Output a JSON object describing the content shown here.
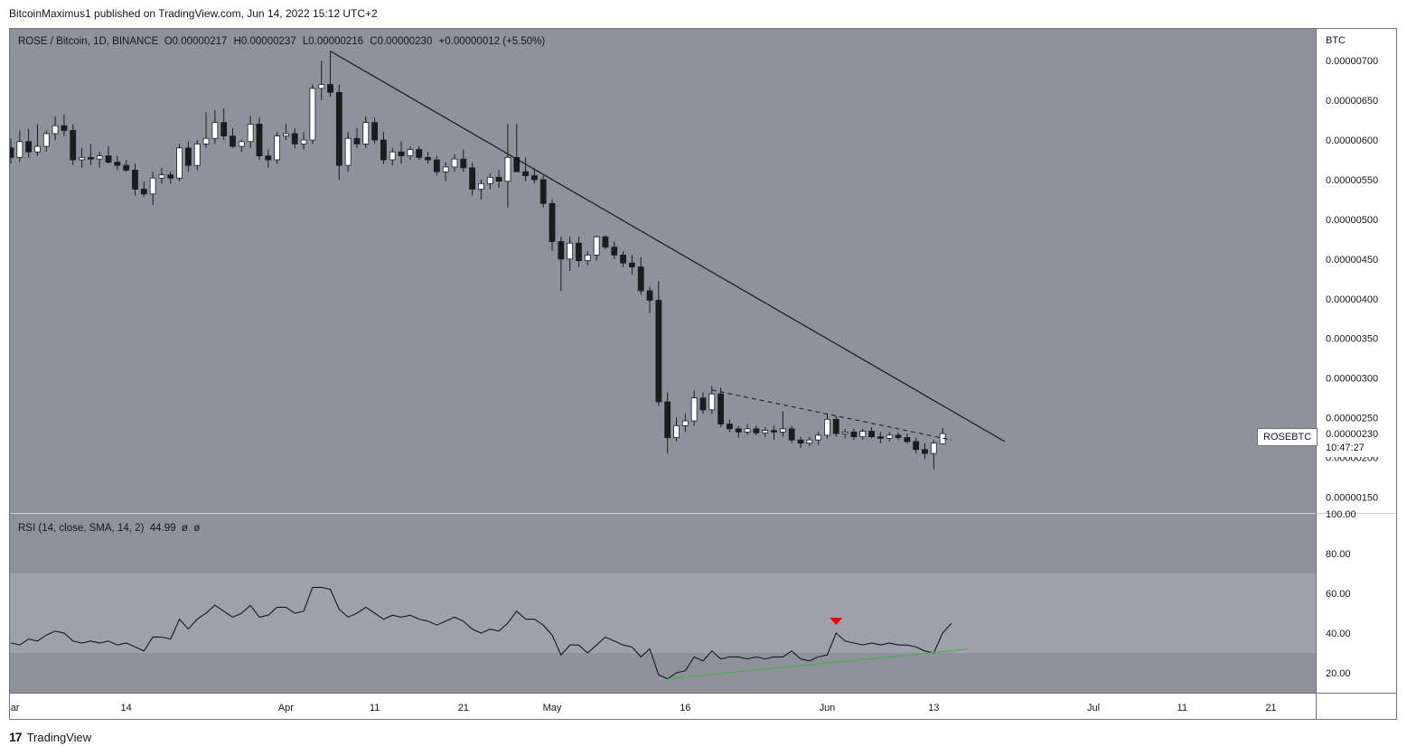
{
  "header": {
    "published": "BitcoinMaximus1 published on TradingView.com, Jun 14, 2022 15:12 UTC+2"
  },
  "legend": {
    "symbol": "ROSE / Bitcoin, 1D, BINANCE",
    "o_label": "O",
    "o": "0.00000217",
    "h_label": "H",
    "h": "0.00000237",
    "l_label": "L",
    "l": "0.00000216",
    "c_label": "C",
    "c": "0.00000230",
    "change": "+0.00000012 (+5.50%)"
  },
  "rsi_legend": {
    "label": "RSI (14, close, SMA, 14, 2)",
    "value": "44.99",
    "na1": "ø",
    "na2": "ø"
  },
  "price_axis": {
    "unit": "BTC",
    "ticks": [
      "0.00000700",
      "0.00000650",
      "0.00000600",
      "0.00000550",
      "0.00000500",
      "0.00000450",
      "0.00000400",
      "0.00000350",
      "0.00000300",
      "0.00000250",
      "0.00000200",
      "0.00000150"
    ]
  },
  "rsi_axis": {
    "ticks": [
      "100.00",
      "80.00",
      "60.00",
      "40.00",
      "20.00"
    ]
  },
  "last_price": {
    "symbol": "ROSEBTC",
    "price": "0.00000230",
    "countdown": "10:47:27"
  },
  "time_axis": {
    "labels": [
      "Mar",
      "14",
      "Apr",
      "11",
      "21",
      "May",
      "16",
      "Jun",
      "13",
      "Jul",
      "11",
      "21"
    ]
  },
  "colors": {
    "background": "#8f929b",
    "rsi_band": "#9ea1aa",
    "up_candle": "#ffffff",
    "down_candle": "#1b1c20",
    "rsi_line": "#131722",
    "rsi_trend": "#4caf50",
    "marker": "#e8000b"
  },
  "footer": {
    "brand": "TradingView",
    "logo": "17"
  },
  "chart_data": [
    {
      "type": "candlestick",
      "title": "ROSE / Bitcoin, 1D, BINANCE",
      "ylabel": "BTC",
      "ylim": [
        1.3e-06,
        7.4e-06
      ],
      "x_start": "2022-03-01",
      "candles": [
        [
          5.9e-06,
          6.02e-06,
          5.7e-06,
          5.78e-06
        ],
        [
          5.78e-06,
          6.12e-06,
          5.72e-06,
          5.98e-06
        ],
        [
          5.98e-06,
          6.14e-06,
          5.78e-06,
          5.85e-06
        ],
        [
          5.85e-06,
          6.2e-06,
          5.8e-06,
          5.92e-06
        ],
        [
          5.92e-06,
          6.12e-06,
          5.85e-06,
          6.08e-06
        ],
        [
          6.08e-06,
          6.3e-06,
          6e-06,
          6.18e-06
        ],
        [
          6.18e-06,
          6.32e-06,
          6.05e-06,
          6.12e-06
        ],
        [
          6.12e-06,
          6.2e-06,
          5.68e-06,
          5.75e-06
        ],
        [
          5.75e-06,
          5.9e-06,
          5.65e-06,
          5.78e-06
        ],
        [
          5.78e-06,
          5.95e-06,
          5.68e-06,
          5.76e-06
        ],
        [
          5.76e-06,
          5.85e-06,
          5.65e-06,
          5.8e-06
        ],
        [
          5.8e-06,
          5.92e-06,
          5.7e-06,
          5.72e-06
        ],
        [
          5.72e-06,
          5.8e-06,
          5.62e-06,
          5.68e-06
        ],
        [
          5.68e-06,
          5.75e-06,
          5.6e-06,
          5.62e-06
        ],
        [
          5.62e-06,
          5.7e-06,
          5.3e-06,
          5.38e-06
        ],
        [
          5.38e-06,
          5.48e-06,
          5.28e-06,
          5.32e-06
        ],
        [
          5.32e-06,
          5.6e-06,
          5.18e-06,
          5.52e-06
        ],
        [
          5.52e-06,
          5.65e-06,
          5.45e-06,
          5.56e-06
        ],
        [
          5.56e-06,
          5.6e-06,
          5.45e-06,
          5.52e-06
        ],
        [
          5.52e-06,
          5.95e-06,
          5.48e-06,
          5.9e-06
        ],
        [
          5.9e-06,
          5.98e-06,
          5.6e-06,
          5.68e-06
        ],
        [
          5.68e-06,
          6e-06,
          5.62e-06,
          5.95e-06
        ],
        [
          5.95e-06,
          6.35e-06,
          5.9e-06,
          6.02e-06
        ],
        [
          6.02e-06,
          6.38e-06,
          5.95e-06,
          6.22e-06
        ],
        [
          6.22e-06,
          6.4e-06,
          6e-06,
          6.05e-06
        ],
        [
          6.05e-06,
          6.15e-06,
          5.9e-06,
          5.92e-06
        ],
        [
          5.92e-06,
          6e-06,
          5.85e-06,
          5.98e-06
        ],
        [
          5.98e-06,
          6.3e-06,
          5.9e-06,
          6.2e-06
        ],
        [
          6.2e-06,
          6.28e-06,
          5.75e-06,
          5.8e-06
        ],
        [
          5.8e-06,
          5.88e-06,
          5.65e-06,
          5.75e-06
        ],
        [
          5.75e-06,
          6.1e-06,
          5.7e-06,
          6.05e-06
        ],
        [
          6.05e-06,
          6.2e-06,
          6e-06,
          6.08e-06
        ],
        [
          6.08e-06,
          6.15e-06,
          5.9e-06,
          5.95e-06
        ],
        [
          5.95e-06,
          6.1e-06,
          5.88e-06,
          6e-06
        ],
        [
          6e-06,
          6.7e-06,
          5.95e-06,
          6.65e-06
        ],
        [
          6.65e-06,
          7e-06,
          6.5e-06,
          6.7e-06
        ],
        [
          6.7e-06,
          7.12e-06,
          6.55e-06,
          6.6e-06
        ],
        [
          6.6e-06,
          6.7e-06,
          5.5e-06,
          5.68e-06
        ],
        [
          5.68e-06,
          6.1e-06,
          5.6e-06,
          6.02e-06
        ],
        [
          6.02e-06,
          6.15e-06,
          5.9e-06,
          5.95e-06
        ],
        [
          5.95e-06,
          6.3e-06,
          5.9e-06,
          6.22e-06
        ],
        [
          6.22e-06,
          6.28e-06,
          5.95e-06,
          6e-06
        ],
        [
          6e-06,
          6.1e-06,
          5.7e-06,
          5.75e-06
        ],
        [
          5.75e-06,
          5.9e-06,
          5.68e-06,
          5.85e-06
        ],
        [
          5.85e-06,
          5.98e-06,
          5.7e-06,
          5.8e-06
        ],
        [
          5.8e-06,
          5.92e-06,
          5.75e-06,
          5.88e-06
        ],
        [
          5.88e-06,
          5.92e-06,
          5.75e-06,
          5.78e-06
        ],
        [
          5.78e-06,
          5.85e-06,
          5.7e-06,
          5.75e-06
        ],
        [
          5.75e-06,
          5.8e-06,
          5.55e-06,
          5.6e-06
        ],
        [
          5.6e-06,
          5.72e-06,
          5.48e-06,
          5.66e-06
        ],
        [
          5.66e-06,
          5.82e-06,
          5.6e-06,
          5.76e-06
        ],
        [
          5.76e-06,
          5.88e-06,
          5.6e-06,
          5.65e-06
        ],
        [
          5.65e-06,
          5.72e-06,
          5.3e-06,
          5.38e-06
        ],
        [
          5.38e-06,
          5.5e-06,
          5.25e-06,
          5.45e-06
        ],
        [
          5.45e-06,
          5.58e-06,
          5.38e-06,
          5.53e-06
        ],
        [
          5.53e-06,
          5.62e-06,
          5.4e-06,
          5.48e-06
        ],
        [
          5.48e-06,
          6.2e-06,
          5.15e-06,
          5.78e-06
        ],
        [
          5.78e-06,
          6.2e-06,
          5.6e-06,
          5.6e-06
        ],
        [
          5.6e-06,
          5.78e-06,
          5.48e-06,
          5.55e-06
        ],
        [
          5.55e-06,
          5.65e-06,
          5.45e-06,
          5.5e-06
        ],
        [
          5.5e-06,
          5.55e-06,
          5.15e-06,
          5.2e-06
        ],
        [
          5.2e-06,
          5.25e-06,
          4.6e-06,
          4.72e-06
        ],
        [
          4.72e-06,
          4.78e-06,
          4.1e-06,
          4.5e-06
        ],
        [
          4.5e-06,
          4.78e-06,
          4.35e-06,
          4.7e-06
        ],
        [
          4.7e-06,
          4.78e-06,
          4.4e-06,
          4.48e-06
        ],
        [
          4.48e-06,
          4.6e-06,
          4.42e-06,
          4.55e-06
        ],
        [
          4.55e-06,
          4.8e-06,
          4.48e-06,
          4.78e-06
        ],
        [
          4.78e-06,
          4.8e-06,
          4.62e-06,
          4.65e-06
        ],
        [
          4.65e-06,
          4.72e-06,
          4.5e-06,
          4.55e-06
        ],
        [
          4.55e-06,
          4.6e-06,
          4.4e-06,
          4.45e-06
        ],
        [
          4.45e-06,
          4.55e-06,
          4.3e-06,
          4.4e-06
        ],
        [
          4.4e-06,
          4.52e-06,
          4.05e-06,
          4.1e-06
        ],
        [
          4.1e-06,
          4.15e-06,
          3.82e-06,
          3.98e-06
        ],
        [
          3.98e-06,
          4.22e-06,
          2.65e-06,
          2.7e-06
        ],
        [
          2.7e-06,
          2.82e-06,
          2.05e-06,
          2.25e-06
        ],
        [
          2.25e-06,
          2.5e-06,
          2.2e-06,
          2.4e-06
        ],
        [
          2.4e-06,
          2.55e-06,
          2.32e-06,
          2.46e-06
        ],
        [
          2.46e-06,
          2.85e-06,
          2.4e-06,
          2.75e-06
        ],
        [
          2.75e-06,
          2.82e-06,
          2.55e-06,
          2.6e-06
        ],
        [
          2.6e-06,
          2.9e-06,
          2.55e-06,
          2.8e-06
        ],
        [
          2.8e-06,
          2.88e-06,
          2.38e-06,
          2.42e-06
        ],
        [
          2.42e-06,
          2.48e-06,
          2.32e-06,
          2.36e-06
        ],
        [
          2.36e-06,
          2.4e-06,
          2.25e-06,
          2.32e-06
        ],
        [
          2.32e-06,
          2.42e-06,
          2.28e-06,
          2.36e-06
        ],
        [
          2.36e-06,
          2.4e-06,
          2.28e-06,
          2.31e-06
        ],
        [
          2.31e-06,
          2.38e-06,
          2.26e-06,
          2.34e-06
        ],
        [
          2.34e-06,
          2.4e-06,
          2.22e-06,
          2.32e-06
        ],
        [
          2.32e-06,
          2.58e-06,
          2.26e-06,
          2.36e-06
        ],
        [
          2.36e-06,
          2.4e-06,
          2.18e-06,
          2.22e-06
        ],
        [
          2.22e-06,
          2.26e-06,
          2.12e-06,
          2.18e-06
        ],
        [
          2.18e-06,
          2.26e-06,
          2.14e-06,
          2.22e-06
        ],
        [
          2.22e-06,
          2.32e-06,
          2.16e-06,
          2.28e-06
        ],
        [
          2.28e-06,
          2.55e-06,
          2.24e-06,
          2.48e-06
        ],
        [
          2.48e-06,
          2.52e-06,
          2.26e-06,
          2.3e-06
        ],
        [
          2.3e-06,
          2.36e-06,
          2.24e-06,
          2.32e-06
        ],
        [
          2.32e-06,
          2.36e-06,
          2.22e-06,
          2.26e-06
        ],
        [
          2.26e-06,
          2.36e-06,
          2.22e-06,
          2.33e-06
        ],
        [
          2.33e-06,
          2.38e-06,
          2.24e-06,
          2.26e-06
        ],
        [
          2.26e-06,
          2.32e-06,
          2.18e-06,
          2.24e-06
        ],
        [
          2.24e-06,
          2.32e-06,
          2.2e-06,
          2.28e-06
        ],
        [
          2.28e-06,
          2.32e-06,
          2.22e-06,
          2.25e-06
        ],
        [
          2.25e-06,
          2.3e-06,
          2.18e-06,
          2.2e-06
        ],
        [
          2.2e-06,
          2.25e-06,
          2.05e-06,
          2.1e-06
        ],
        [
          2.1e-06,
          2.18e-06,
          1.98e-06,
          2.05e-06
        ],
        [
          2.05e-06,
          2.22e-06,
          1.85e-06,
          2.18e-06
        ],
        [
          2.17e-06,
          2.37e-06,
          2.16e-06,
          2.3e-06
        ]
      ],
      "trendlines": [
        {
          "style": "solid",
          "from": [
            36,
            7.12e-06
          ],
          "to": [
            112,
            2.2e-06
          ]
        },
        {
          "style": "dashed",
          "from": [
            79,
            2.85e-06
          ],
          "to": [
            106,
            2.22e-06
          ]
        }
      ]
    },
    {
      "type": "line",
      "title": "RSI (14, close, SMA, 14, 2)",
      "ylim": [
        10,
        100
      ],
      "bands": [
        30,
        70
      ],
      "x_start": "2022-03-01",
      "values": [
        35,
        34,
        37,
        36,
        39,
        41,
        40,
        36,
        35,
        36,
        35,
        36,
        34,
        35,
        33,
        31,
        38,
        38,
        37,
        47,
        42,
        47,
        50,
        54,
        51,
        48,
        50,
        54,
        48,
        49,
        53,
        53,
        50,
        51,
        63,
        63,
        62,
        52,
        48,
        50,
        53,
        50,
        47,
        49,
        48,
        49,
        47,
        46,
        44,
        46,
        48,
        46,
        42,
        40,
        42,
        41,
        45,
        51,
        47,
        47,
        44,
        39,
        29,
        34,
        34,
        30,
        34,
        38,
        36,
        34,
        33,
        28,
        32,
        19,
        17,
        20,
        21,
        28,
        26,
        31,
        27,
        28,
        28,
        27,
        28,
        27,
        28,
        28,
        31,
        27,
        26,
        28,
        29,
        40,
        36,
        35,
        34,
        35,
        34,
        35,
        34,
        34,
        33,
        31,
        30,
        40,
        45
      ],
      "trendline": {
        "from": [
          74,
          17
        ],
        "to": [
          108,
          32
        ]
      },
      "marker": {
        "index": 93,
        "value": 45
      }
    }
  ]
}
